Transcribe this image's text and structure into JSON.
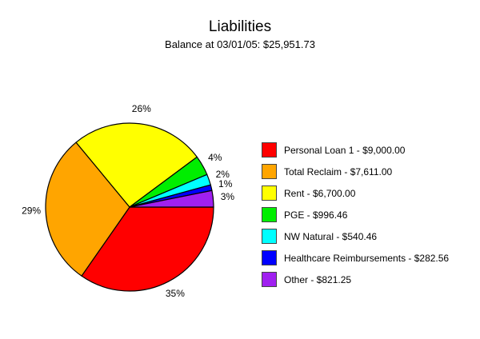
{
  "chart_data": {
    "type": "pie",
    "title": "Liabilities",
    "subtitle": "Balance at 03/01/05: $25,951.73",
    "legend_position": "right",
    "slices": [
      {
        "name": "Personal Loan 1",
        "amount": 9000.0,
        "percent": 35,
        "percent_label": "35%",
        "legend_label": "Personal Loan 1 - $9,000.00",
        "color": "#ff0000"
      },
      {
        "name": "Total Reclaim",
        "amount": 7611.0,
        "percent": 29,
        "percent_label": "29%",
        "legend_label": "Total Reclaim - $7,611.00",
        "color": "#ffa500"
      },
      {
        "name": "Rent",
        "amount": 6700.0,
        "percent": 26,
        "percent_label": "26%",
        "legend_label": "Rent - $6,700.00",
        "color": "#ffff00"
      },
      {
        "name": "PGE",
        "amount": 996.46,
        "percent": 4,
        "percent_label": "4%",
        "legend_label": "PGE - $996.46",
        "color": "#00ee00"
      },
      {
        "name": "NW Natural",
        "amount": 540.46,
        "percent": 2,
        "percent_label": "2%",
        "legend_label": "NW Natural - $540.46",
        "color": "#00ffff"
      },
      {
        "name": "Healthcare Reimbursements",
        "amount": 282.56,
        "percent": 1,
        "percent_label": "1%",
        "legend_label": "Healthcare Reimbursements - $282.56",
        "color": "#0000ff"
      },
      {
        "name": "Other",
        "amount": 821.25,
        "percent": 3,
        "percent_label": "3%",
        "legend_label": "Other - $821.25",
        "color": "#a020f0"
      }
    ]
  }
}
